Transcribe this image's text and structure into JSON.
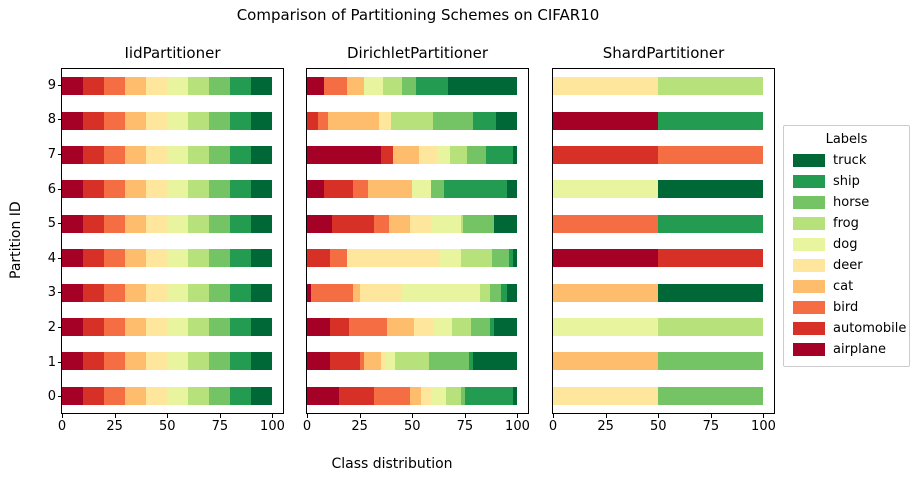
{
  "figure": {
    "suptitle": "Comparison of Partitioning Schemes on CIFAR10",
    "xlabel": "Class distribution",
    "ylabel": "Partition ID"
  },
  "legend": {
    "title": "Labels",
    "entries": [
      {
        "label": "truck",
        "color": "#006837"
      },
      {
        "label": "ship",
        "color": "#239c52"
      },
      {
        "label": "horse",
        "color": "#74c466"
      },
      {
        "label": "frog",
        "color": "#b7e17a"
      },
      {
        "label": "dog",
        "color": "#e9f59e"
      },
      {
        "label": "deer",
        "color": "#fee79c"
      },
      {
        "label": "cat",
        "color": "#fdbd6d"
      },
      {
        "label": "bird",
        "color": "#f46d43"
      },
      {
        "label": "automobile",
        "color": "#d73027"
      },
      {
        "label": "airplane",
        "color": "#a50026"
      }
    ]
  },
  "chart_data": {
    "type": "bar",
    "orientation": "horizontal",
    "stacked": true,
    "xlabel": "Class distribution",
    "ylabel": "Partition ID",
    "xlim": [
      0,
      105
    ],
    "xticks": [
      0,
      25,
      50,
      75,
      100
    ],
    "yticks_top_to_bottom": [
      9,
      8,
      7,
      6,
      5,
      4,
      3,
      2,
      1,
      0
    ],
    "classes": [
      "airplane",
      "automobile",
      "bird",
      "cat",
      "deer",
      "dog",
      "frog",
      "horse",
      "ship",
      "truck"
    ],
    "colors": [
      "#a50026",
      "#d73027",
      "#f46d43",
      "#fdbd6d",
      "#fee79c",
      "#e9f59e",
      "#b7e17a",
      "#74c466",
      "#239c52",
      "#006837"
    ],
    "subplots": [
      {
        "title": "IidPartitioner",
        "rows_top_to_bottom": [
          {
            "partition": 9,
            "values": [
              10,
              10,
              10,
              10,
              10,
              10,
              10,
              10,
              10,
              10
            ]
          },
          {
            "partition": 8,
            "values": [
              10,
              10,
              10,
              10,
              10,
              10,
              10,
              10,
              10,
              10
            ]
          },
          {
            "partition": 7,
            "values": [
              10,
              10,
              10,
              10,
              10,
              10,
              10,
              10,
              10,
              10
            ]
          },
          {
            "partition": 6,
            "values": [
              10,
              10,
              10,
              10,
              10,
              10,
              10,
              10,
              10,
              10
            ]
          },
          {
            "partition": 5,
            "values": [
              10,
              10,
              10,
              10,
              10,
              10,
              10,
              10,
              10,
              10
            ]
          },
          {
            "partition": 4,
            "values": [
              10,
              10,
              10,
              10,
              10,
              10,
              10,
              10,
              10,
              10
            ]
          },
          {
            "partition": 3,
            "values": [
              10,
              10,
              10,
              10,
              10,
              10,
              10,
              10,
              10,
              10
            ]
          },
          {
            "partition": 2,
            "values": [
              10,
              10,
              10,
              10,
              10,
              10,
              10,
              10,
              10,
              10
            ]
          },
          {
            "partition": 1,
            "values": [
              10,
              10,
              10,
              10,
              10,
              10,
              10,
              10,
              10,
              10
            ]
          },
          {
            "partition": 0,
            "values": [
              10,
              10,
              10,
              10,
              10,
              10,
              10,
              10,
              10,
              10
            ]
          }
        ]
      },
      {
        "title": "DirichletPartitioner",
        "rows_top_to_bottom": [
          {
            "partition": 9,
            "values": [
              8,
              0,
              11,
              8,
              0,
              9,
              9,
              7,
              15,
              33
            ]
          },
          {
            "partition": 8,
            "values": [
              0,
              5,
              5,
              24,
              6,
              0,
              20,
              19,
              11,
              10
            ]
          },
          {
            "partition": 7,
            "values": [
              35,
              6,
              0,
              12,
              9,
              6,
              8,
              9,
              13,
              2
            ]
          },
          {
            "partition": 6,
            "values": [
              8,
              14,
              7,
              21,
              0,
              9,
              0,
              6,
              30,
              5
            ]
          },
          {
            "partition": 5,
            "values": [
              12,
              20,
              7,
              10,
              10,
              14,
              1,
              15,
              0,
              11
            ]
          },
          {
            "partition": 4,
            "values": [
              0,
              11,
              8,
              0,
              44,
              10,
              15,
              8,
              2,
              2
            ]
          },
          {
            "partition": 3,
            "values": [
              2,
              0,
              20,
              3,
              20,
              37,
              5,
              5,
              3,
              5
            ]
          },
          {
            "partition": 2,
            "values": [
              11,
              9,
              18,
              13,
              9,
              9,
              9,
              9,
              2,
              11
            ]
          },
          {
            "partition": 1,
            "values": [
              11,
              14,
              2,
              8,
              2,
              5,
              16,
              19,
              2,
              21
            ]
          },
          {
            "partition": 0,
            "values": [
              15,
              17,
              17,
              5,
              5,
              7,
              7,
              2,
              23,
              2
            ]
          }
        ]
      },
      {
        "title": "ShardPartitioner",
        "rows_top_to_bottom": [
          {
            "partition": 9,
            "values": [
              0,
              0,
              0,
              0,
              50,
              0,
              50,
              0,
              0,
              0
            ]
          },
          {
            "partition": 8,
            "values": [
              50,
              0,
              0,
              0,
              0,
              0,
              0,
              0,
              50,
              0
            ]
          },
          {
            "partition": 7,
            "values": [
              0,
              50,
              50,
              0,
              0,
              0,
              0,
              0,
              0,
              0
            ]
          },
          {
            "partition": 6,
            "values": [
              0,
              0,
              0,
              0,
              0,
              50,
              0,
              0,
              0,
              50
            ]
          },
          {
            "partition": 5,
            "values": [
              0,
              0,
              50,
              0,
              0,
              0,
              0,
              0,
              50,
              0
            ]
          },
          {
            "partition": 4,
            "values": [
              50,
              50,
              0,
              0,
              0,
              0,
              0,
              0,
              0,
              0
            ]
          },
          {
            "partition": 3,
            "values": [
              0,
              0,
              0,
              50,
              0,
              0,
              0,
              0,
              0,
              50
            ]
          },
          {
            "partition": 2,
            "values": [
              0,
              0,
              0,
              0,
              0,
              50,
              50,
              0,
              0,
              0
            ]
          },
          {
            "partition": 1,
            "values": [
              0,
              0,
              0,
              50,
              0,
              0,
              0,
              50,
              0,
              0
            ]
          },
          {
            "partition": 0,
            "values": [
              0,
              0,
              0,
              0,
              50,
              0,
              0,
              50,
              0,
              0
            ]
          }
        ]
      }
    ]
  }
}
